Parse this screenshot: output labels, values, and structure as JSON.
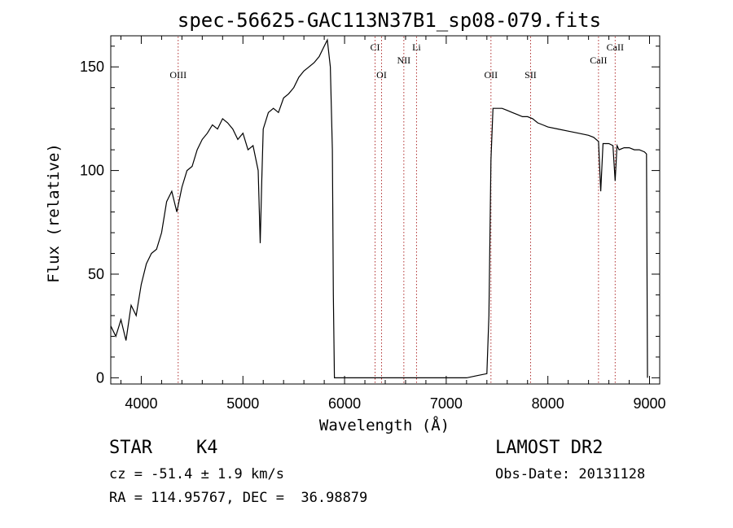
{
  "chart_data": {
    "type": "line",
    "title": "spec-56625-GAC113N37B1_sp08-079.fits",
    "xlabel": "Wavelength (Å)",
    "ylabel": "Flux (relative)",
    "xlim": [
      3700,
      9100
    ],
    "ylim": [
      -3,
      165
    ],
    "xticks": [
      4000,
      5000,
      6000,
      7000,
      8000,
      9000
    ],
    "yticks": [
      0,
      50,
      100,
      150
    ],
    "grid": false,
    "series": [
      {
        "color": "#000000",
        "x": [
          3700,
          3750,
          3800,
          3850,
          3900,
          3950,
          4000,
          4050,
          4100,
          4150,
          4200,
          4250,
          4300,
          4350,
          4400,
          4450,
          4500,
          4550,
          4600,
          4650,
          4700,
          4750,
          4800,
          4850,
          4900,
          4950,
          5000,
          5050,
          5100,
          5150,
          5170,
          5185,
          5200,
          5250,
          5300,
          5350,
          5400,
          5450,
          5500,
          5550,
          5600,
          5650,
          5700,
          5750,
          5800,
          5830,
          5860,
          5880,
          5890,
          5900,
          5950,
          6000,
          6500,
          7000,
          7200,
          7300,
          7400,
          7420,
          7440,
          7460,
          7500,
          7550,
          7600,
          7650,
          7700,
          7750,
          7800,
          7850,
          7900,
          7950,
          8000,
          8100,
          8200,
          8300,
          8400,
          8450,
          8498,
          8520,
          8542,
          8560,
          8600,
          8640,
          8662,
          8680,
          8700,
          8750,
          8800,
          8850,
          8900,
          8950,
          8970,
          8980
        ],
        "y": [
          25,
          20,
          28,
          18,
          35,
          30,
          45,
          55,
          60,
          62,
          70,
          85,
          90,
          80,
          92,
          100,
          102,
          110,
          115,
          118,
          122,
          120,
          125,
          123,
          120,
          115,
          118,
          110,
          112,
          100,
          65,
          95,
          120,
          128,
          130,
          128,
          135,
          137,
          140,
          145,
          148,
          150,
          152,
          155,
          160,
          163,
          150,
          110,
          40,
          0,
          0,
          0,
          0,
          0,
          0,
          1,
          2,
          30,
          105,
          130,
          130,
          130,
          129,
          128,
          127,
          126,
          126,
          125,
          123,
          122,
          121,
          120,
          119,
          118,
          117,
          116,
          114,
          90,
          113,
          113,
          113,
          112,
          95,
          112,
          110,
          111,
          111,
          110,
          110,
          109,
          108,
          0
        ]
      }
    ],
    "lines": [
      {
        "label": "OIII",
        "x": 4363,
        "level": "low"
      },
      {
        "label": "CI",
        "x": 6300,
        "level": "high"
      },
      {
        "label": "OI",
        "x": 6364,
        "level": "low"
      },
      {
        "label": "NII",
        "x": 6583,
        "level": "mid"
      },
      {
        "label": "Li",
        "x": 6708,
        "level": "high"
      },
      {
        "label": "OII",
        "x": 7440,
        "level": "low"
      },
      {
        "label": "SII",
        "x": 7830,
        "level": "low"
      },
      {
        "label": "CaII",
        "x": 8498,
        "level": "mid"
      },
      {
        "label": "CaII",
        "x": 8662,
        "level": "high"
      }
    ],
    "line_color": "#b03030"
  },
  "info": {
    "object_class": "STAR",
    "subclass": "K4",
    "velocity": "cz = -51.4 ± 1.9 km/s",
    "coords": "RA = 114.95767, DEC =  36.98879",
    "survey": "LAMOST DR2",
    "obs_date": "Obs-Date: 20131128"
  }
}
